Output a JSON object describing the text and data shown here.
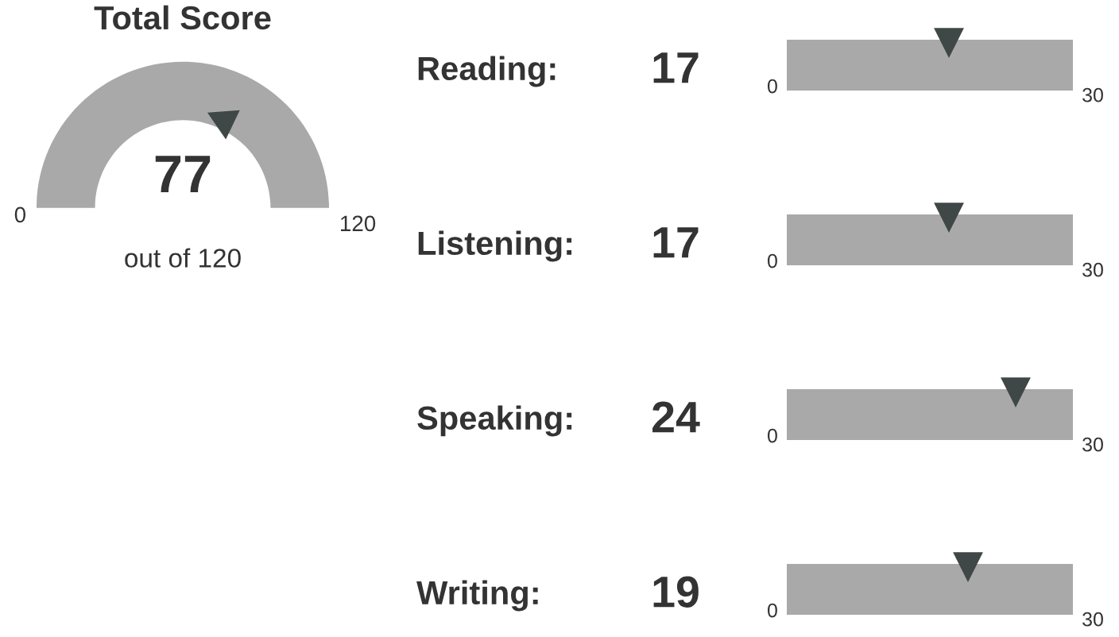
{
  "chart_data": [
    {
      "type": "other",
      "title": "Total Score",
      "subtitle": "out of 120",
      "values": [
        77
      ],
      "annotations": [
        "0",
        "120"
      ],
      "data_labels": true
    },
    {
      "type": "other",
      "title": "Reading:",
      "values": [
        17
      ],
      "annotations": [
        "0",
        "30"
      ],
      "data_labels": true
    },
    {
      "type": "other",
      "title": "Listening:",
      "values": [
        17
      ],
      "annotations": [
        "0",
        "30"
      ],
      "data_labels": true
    },
    {
      "type": "other",
      "title": "Speaking:",
      "values": [
        24
      ],
      "annotations": [
        "0",
        "30"
      ],
      "data_labels": true
    },
    {
      "type": "other",
      "title": "Writing:",
      "values": [
        19
      ],
      "annotations": [
        "0",
        "30"
      ],
      "data_labels": true
    }
  ]
}
